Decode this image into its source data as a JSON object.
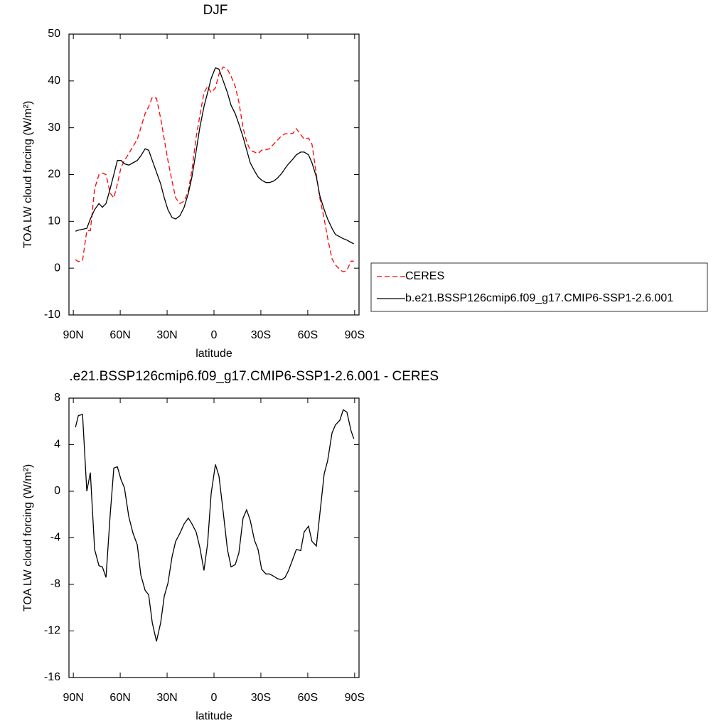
{
  "chart_data": [
    {
      "type": "line",
      "title": "DJF",
      "xlabel": "latitude",
      "ylabel": "TOA LW cloud forcing (W/m²)",
      "x": [
        88.6,
        86.8,
        84.1,
        81.4,
        79.1,
        76.4,
        73.6,
        71.4,
        69.1,
        66.4,
        64.1,
        61.8,
        59.5,
        57.3,
        54.5,
        51.8,
        49.1,
        46.8,
        44.1,
        41.8,
        39.5,
        36.8,
        34.1,
        31.8,
        29.5,
        26.8,
        24.5,
        21.8,
        19.1,
        16.4,
        14.1,
        11.4,
        9.1,
        6.4,
        4.1,
        1.8,
        -0.9,
        -3.2,
        -5.9,
        -8.6,
        -10.9,
        -13.6,
        -15.9,
        -18.6,
        -20.9,
        -23.2,
        -25.9,
        -28.2,
        -30.5,
        -33.2,
        -35.5,
        -38.2,
        -40.5,
        -43.2,
        -45.5,
        -47.7,
        -50.5,
        -52.7,
        -55.5,
        -57.7,
        -60.5,
        -62.7,
        -65.5,
        -67.7,
        -70.5,
        -72.7,
        -75.5,
        -77.7,
        -80.5,
        -82.7,
        -85,
        -87.7,
        -89.5
      ],
      "series": [
        {
          "name": "CERES",
          "color": "#ff0000",
          "dash": true,
          "values": [
            1.8,
            1.4,
            1.6,
            8,
            8,
            17,
            20,
            20.3,
            20,
            16,
            15,
            18,
            21.5,
            23,
            24.5,
            26,
            27.5,
            30,
            33,
            34.5,
            36.5,
            36.3,
            32,
            27.5,
            23,
            18.5,
            15,
            13.8,
            14.3,
            16.5,
            21,
            28,
            32.5,
            37.5,
            38.8,
            37.5,
            38.5,
            41.5,
            43,
            42.5,
            41,
            38.8,
            35.5,
            30,
            27,
            25.2,
            24.8,
            24.5,
            25.2,
            25.3,
            25.5,
            26.5,
            27.3,
            28.3,
            28.7,
            28.7,
            28.8,
            29.8,
            28.5,
            27.6,
            27.8,
            26.5,
            20,
            15,
            10.5,
            6.5,
            2,
            0.7,
            -0.3,
            -0.8,
            -0.5,
            1.5,
            1.5
          ]
        },
        {
          "name": "b.e21.BSSP126cmip6.f09_g17.CMIP6-SSP1-2.6.001",
          "color": "#000000",
          "dash": false,
          "values": [
            7.9,
            8.1,
            8.3,
            8.5,
            10.5,
            12.5,
            13.8,
            13,
            13.8,
            17,
            20,
            23,
            23,
            22.3,
            22,
            22.5,
            23,
            24,
            25.5,
            25.2,
            23,
            20.5,
            18,
            15,
            12.5,
            10.8,
            10.5,
            11.2,
            13,
            16,
            19.5,
            25,
            30,
            34.5,
            37.5,
            40.5,
            42.8,
            42.5,
            40,
            37.5,
            34.8,
            33,
            30.8,
            28,
            25.3,
            22.5,
            20.8,
            19.5,
            18.8,
            18.3,
            18.3,
            18.6,
            19.2,
            20.2,
            21.3,
            22.3,
            23.3,
            24.2,
            24.8,
            24.8,
            24.2,
            22.5,
            19.5,
            15.5,
            12.5,
            10.5,
            8.5,
            7.2,
            6.7,
            6.3,
            6,
            5.5,
            5.2
          ]
        }
      ],
      "xlim": [
        92.8,
        -92.8
      ],
      "xticks": [
        {
          "value": 90,
          "label": "90N"
        },
        {
          "value": 60,
          "label": "60N"
        },
        {
          "value": 30,
          "label": "30N"
        },
        0,
        {
          "value": -30,
          "label": "30S"
        },
        {
          "value": -60,
          "label": "60S"
        },
        {
          "value": -90,
          "label": "90S"
        }
      ],
      "ylim": [
        -10,
        50
      ],
      "yticks": [
        -10,
        0,
        10,
        20,
        30,
        40,
        50
      ],
      "legend": "right"
    },
    {
      "type": "line",
      "title": ".e21.BSSP126cmip6.f09_g17.CMIP6-SSP1-2.6.001 - CERES",
      "xlabel": "latitude",
      "ylabel": "TOA LW cloud forcing (W/m²)",
      "x": [
        88.6,
        86.8,
        84.1,
        81.4,
        79.1,
        76.4,
        73.6,
        71.4,
        69.1,
        66.4,
        64.1,
        61.8,
        59.5,
        57.3,
        54.5,
        51.8,
        49.1,
        46.8,
        44.1,
        41.8,
        39.5,
        36.8,
        34.1,
        31.8,
        29.5,
        26.8,
        24.5,
        21.8,
        19.1,
        16.4,
        14.1,
        11.4,
        9.1,
        6.4,
        4.1,
        1.8,
        -0.9,
        -3.2,
        -5.9,
        -8.6,
        -10.9,
        -13.6,
        -15.9,
        -18.6,
        -20.9,
        -23.2,
        -25.9,
        -28.2,
        -30.5,
        -33.2,
        -35.5,
        -38.2,
        -40.5,
        -43.2,
        -45.5,
        -47.7,
        -50.5,
        -52.7,
        -55.5,
        -57.7,
        -60.5,
        -62.7,
        -65.5,
        -67.7,
        -70.5,
        -72.7,
        -75.5,
        -77.7,
        -80.5,
        -82.7,
        -85,
        -87.7,
        -89.5
      ],
      "series": [
        {
          "color": "#000000",
          "dash": false,
          "values": [
            5.5,
            6.5,
            6.6,
            0,
            1.6,
            -5,
            -6.4,
            -6.5,
            -7.4,
            -2,
            2,
            2.1,
            1,
            0.3,
            -2.2,
            -3.6,
            -4.6,
            -7.2,
            -8.5,
            -8.9,
            -11.3,
            -12.9,
            -11.3,
            -9,
            -7.9,
            -5.6,
            -4.3,
            -3.6,
            -2.8,
            -2.3,
            -2.8,
            -3.5,
            -4.8,
            -6.8,
            -4.5,
            -0.2,
            2.3,
            1.3,
            -1.8,
            -5,
            -6.5,
            -6.3,
            -5.3,
            -2.3,
            -1.6,
            -2.5,
            -4.2,
            -5,
            -6.7,
            -7.1,
            -7.1,
            -7.3,
            -7.5,
            -7.6,
            -7.4,
            -6.8,
            -5.8,
            -5,
            -5.1,
            -3.5,
            -3,
            -4.3,
            -4.7,
            -2,
            1.5,
            2.6,
            5,
            5.7,
            6.1,
            7,
            6.8,
            5.2,
            4.5
          ]
        }
      ],
      "xlim": [
        92.8,
        -92.8
      ],
      "xticks": [
        {
          "value": 90,
          "label": "90N"
        },
        {
          "value": 60,
          "label": "60N"
        },
        {
          "value": 30,
          "label": "30N"
        },
        0,
        {
          "value": -30,
          "label": "30S"
        },
        {
          "value": -60,
          "label": "60S"
        },
        {
          "value": -90,
          "label": "90S"
        }
      ],
      "ylim": [
        -16,
        8
      ],
      "yticks": [
        -16,
        -12,
        -8,
        -4,
        0,
        4,
        8
      ]
    }
  ]
}
